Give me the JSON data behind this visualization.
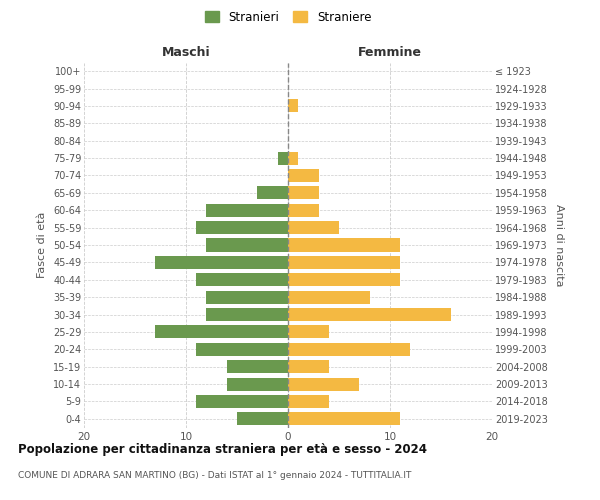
{
  "age_groups": [
    "0-4",
    "5-9",
    "10-14",
    "15-19",
    "20-24",
    "25-29",
    "30-34",
    "35-39",
    "40-44",
    "45-49",
    "50-54",
    "55-59",
    "60-64",
    "65-69",
    "70-74",
    "75-79",
    "80-84",
    "85-89",
    "90-94",
    "95-99",
    "100+"
  ],
  "birth_years": [
    "2019-2023",
    "2014-2018",
    "2009-2013",
    "2004-2008",
    "1999-2003",
    "1994-1998",
    "1989-1993",
    "1984-1988",
    "1979-1983",
    "1974-1978",
    "1969-1973",
    "1964-1968",
    "1959-1963",
    "1954-1958",
    "1949-1953",
    "1944-1948",
    "1939-1943",
    "1934-1938",
    "1929-1933",
    "1924-1928",
    "≤ 1923"
  ],
  "maschi": [
    5,
    9,
    6,
    6,
    9,
    13,
    8,
    8,
    9,
    13,
    8,
    9,
    8,
    3,
    0,
    1,
    0,
    0,
    0,
    0,
    0
  ],
  "femmine": [
    11,
    4,
    7,
    4,
    12,
    4,
    16,
    8,
    11,
    11,
    11,
    5,
    3,
    3,
    3,
    1,
    0,
    0,
    1,
    0,
    0
  ],
  "color_maschi": "#6a994e",
  "color_femmine": "#f4b942",
  "background_color": "#ffffff",
  "grid_color": "#cccccc",
  "title": "Popolazione per cittadinanza straniera per età e sesso - 2024",
  "subtitle": "COMUNE DI ADRARA SAN MARTINO (BG) - Dati ISTAT al 1° gennaio 2024 - TUTTITALIA.IT",
  "xlabel_left": "Maschi",
  "xlabel_right": "Femmine",
  "ylabel_left": "Fasce di età",
  "ylabel_right": "Anni di nascita",
  "legend_maschi": "Stranieri",
  "legend_femmine": "Straniere",
  "xlim": 20,
  "bar_height": 0.75
}
